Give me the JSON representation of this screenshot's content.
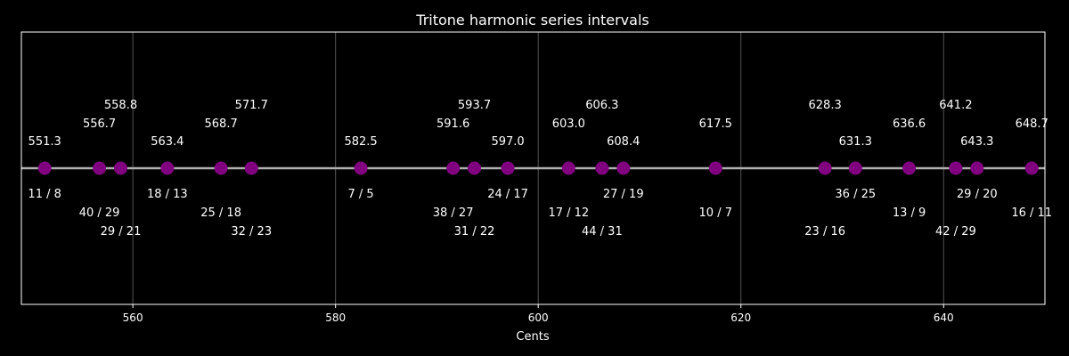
{
  "chart_data": {
    "type": "scatter",
    "title": "Tritone harmonic series intervals",
    "xlabel": "Cents",
    "ylabel": "",
    "xlim": [
      549,
      650
    ],
    "xticks": [
      560,
      580,
      600,
      620,
      640
    ],
    "grid": true,
    "colors": {
      "background": "#000000",
      "frame": "#ffffff",
      "grid": "#555555",
      "baseline": "#b0b0b0",
      "marker": "#800080",
      "text": "#ffffff"
    },
    "points": [
      {
        "cents": 551.3,
        "ratio": "11 / 8"
      },
      {
        "cents": 556.7,
        "ratio": "40 / 29"
      },
      {
        "cents": 558.8,
        "ratio": "29 / 21"
      },
      {
        "cents": 563.4,
        "ratio": "18 / 13"
      },
      {
        "cents": 568.7,
        "ratio": "25 / 18"
      },
      {
        "cents": 571.7,
        "ratio": "32 / 23"
      },
      {
        "cents": 582.5,
        "ratio": "7 / 5"
      },
      {
        "cents": 591.6,
        "ratio": "38 / 27"
      },
      {
        "cents": 593.7,
        "ratio": "31 / 22"
      },
      {
        "cents": 597.0,
        "ratio": "24 / 17"
      },
      {
        "cents": 603.0,
        "ratio": "17 / 12"
      },
      {
        "cents": 606.3,
        "ratio": "44 / 31"
      },
      {
        "cents": 608.4,
        "ratio": "27 / 19"
      },
      {
        "cents": 617.5,
        "ratio": "10 / 7"
      },
      {
        "cents": 628.3,
        "ratio": "23 / 16"
      },
      {
        "cents": 631.3,
        "ratio": "36 / 25"
      },
      {
        "cents": 636.6,
        "ratio": "13 / 9"
      },
      {
        "cents": 641.2,
        "ratio": "42 / 29"
      },
      {
        "cents": 643.3,
        "ratio": "29 / 20"
      },
      {
        "cents": 648.7,
        "ratio": "16 / 11"
      }
    ]
  }
}
